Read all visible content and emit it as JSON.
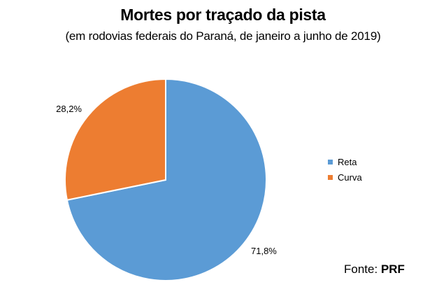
{
  "title": "Mortes por traçado da pista",
  "subtitle": "(em rodovias federais do Paraná, de janeiro a junho de 2019)",
  "source": {
    "label": "Fonte:",
    "value": "PRF"
  },
  "chart_data": {
    "type": "pie",
    "categories": [
      "Reta",
      "Curva"
    ],
    "values": [
      71.8,
      28.2
    ],
    "data_labels": [
      "71,8%",
      "28,2%"
    ],
    "colors": [
      "#5B9BD5",
      "#ED7D31"
    ],
    "legend_position": "right",
    "start_angle": "top (12 o'clock)",
    "direction": "clockwise"
  }
}
